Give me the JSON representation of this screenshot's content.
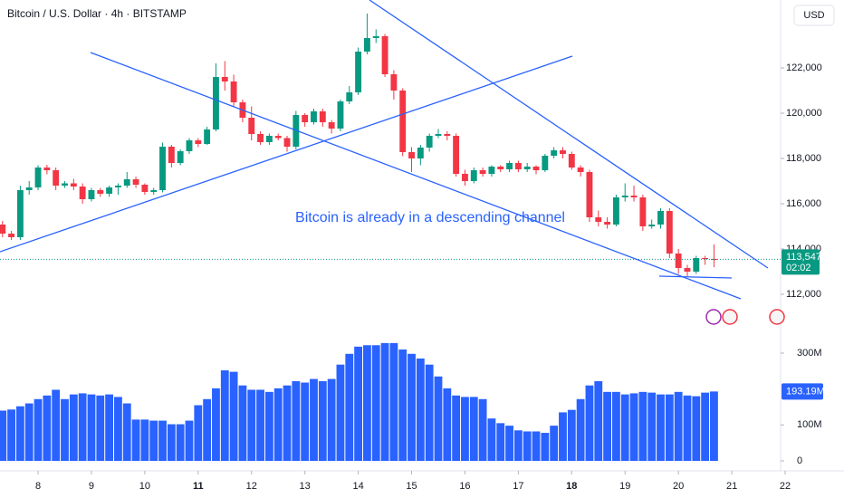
{
  "chart_data": {
    "type": "candlestick",
    "title": "Bitcoin / U.S. Dollar · 4h · BITSTAMP",
    "currency": "USD",
    "annotation": "Bitcoin is already in a descending channel",
    "up_color": "#089981",
    "down_color": "#f23645",
    "open": [
      115080,
      114680,
      114520,
      116600,
      116720,
      117600,
      117480,
      116800,
      116900,
      116760,
      116200,
      116600,
      116440,
      116720,
      116800,
      117080,
      116840,
      116520,
      116600,
      118520,
      117800,
      118320,
      118800,
      118640,
      119280,
      121600,
      121400,
      120480,
      119800,
      119080,
      118720,
      119000,
      118900,
      118520,
      119920,
      119600,
      120080,
      119600,
      119320,
      120520,
      120920,
      122720,
      123320,
      123400,
      121720,
      121000,
      118280,
      118000,
      118480,
      119000,
      119080,
      119000,
      117320,
      117000,
      117480,
      117320,
      117640,
      117520,
      117800,
      117520,
      117640,
      117480,
      118120,
      118360,
      118200,
      117600,
      117400,
      115400,
      115200,
      115080,
      116280,
      116360,
      116280,
      115000,
      115080,
      115680,
      113800,
      113160,
      113000,
      113600,
      113560
    ],
    "high": [
      115240,
      114800,
      116800,
      117000,
      117700,
      117720,
      117600,
      117000,
      117100,
      116900,
      116700,
      116700,
      116800,
      116900,
      117400,
      117200,
      116900,
      116700,
      118700,
      118600,
      118400,
      118900,
      118900,
      119400,
      122200,
      122300,
      121700,
      120600,
      120300,
      119200,
      119100,
      119100,
      119000,
      120100,
      120000,
      120200,
      120200,
      119700,
      120600,
      121200,
      122900,
      124400,
      123700,
      123500,
      121900,
      121100,
      118500,
      118600,
      119100,
      119300,
      119200,
      119100,
      117500,
      117600,
      117600,
      117700,
      117700,
      117900,
      117900,
      117800,
      117700,
      118200,
      118500,
      118500,
      118300,
      117700,
      117500,
      115700,
      115400,
      116400,
      116900,
      116800,
      116400,
      115300,
      115800,
      115800,
      114000,
      113300,
      113700,
      113700,
      114200
    ],
    "low": [
      114520,
      114400,
      114400,
      116400,
      116600,
      117300,
      116600,
      116700,
      116600,
      116000,
      116100,
      116300,
      116300,
      116400,
      116700,
      116700,
      116400,
      116400,
      116500,
      117600,
      117700,
      118200,
      118500,
      118600,
      119200,
      121000,
      120300,
      119600,
      118800,
      118600,
      118600,
      118800,
      118300,
      118400,
      119400,
      119500,
      119400,
      119100,
      119200,
      120400,
      120800,
      122600,
      123100,
      121600,
      120600,
      118100,
      117400,
      117700,
      118300,
      118900,
      118800,
      117200,
      116800,
      116900,
      117200,
      117200,
      117400,
      117400,
      117400,
      117400,
      117300,
      117400,
      118000,
      118000,
      117500,
      117200,
      115200,
      115000,
      114900,
      115000,
      116100,
      116100,
      114800,
      114900,
      114900,
      113600,
      112900,
      112800,
      112900,
      113300,
      113200
    ],
    "close": [
      114680,
      114520,
      116600,
      116720,
      117600,
      117480,
      116800,
      116900,
      116760,
      116200,
      116600,
      116440,
      116720,
      116800,
      117080,
      116840,
      116520,
      116600,
      118520,
      117800,
      118320,
      118800,
      118640,
      119280,
      121600,
      121400,
      120480,
      119800,
      119080,
      118720,
      119000,
      118900,
      118520,
      119920,
      119600,
      120080,
      119600,
      119320,
      120520,
      120920,
      122720,
      123320,
      123400,
      121720,
      121000,
      118280,
      118000,
      118480,
      119000,
      119080,
      119000,
      117320,
      117000,
      117480,
      117320,
      117640,
      117520,
      117800,
      117520,
      117640,
      117480,
      118120,
      118360,
      118200,
      117600,
      117400,
      115400,
      115200,
      115080,
      116280,
      116360,
      116280,
      115000,
      115080,
      115680,
      113800,
      113160,
      113000,
      113600,
      113560,
      113547
    ],
    "last_label": "113,547",
    "countdown": "02:02",
    "xlim": [
      -0.28,
      87.49
    ],
    "xticks": [
      {
        "value": 4,
        "label": "8"
      },
      {
        "value": 10,
        "label": "9"
      },
      {
        "value": 16,
        "label": "10"
      },
      {
        "value": 22,
        "label": "11",
        "bold": true
      },
      {
        "value": 28,
        "label": "12"
      },
      {
        "value": 34,
        "label": "13"
      },
      {
        "value": 40,
        "label": "14"
      },
      {
        "value": 46,
        "label": "15"
      },
      {
        "value": 52,
        "label": "16"
      },
      {
        "value": 58,
        "label": "17"
      },
      {
        "value": 64,
        "label": "18",
        "bold": true
      },
      {
        "value": 70,
        "label": "19"
      },
      {
        "value": 76,
        "label": "20"
      },
      {
        "value": 82,
        "label": "21"
      },
      {
        "value": 88,
        "label": "22"
      }
    ],
    "ylim": [
      110600,
      125000
    ],
    "yticks": [
      {
        "value": 112000,
        "label": "112,000"
      },
      {
        "value": 114000,
        "label": "114,000"
      },
      {
        "value": 116000,
        "label": "116,000"
      },
      {
        "value": 118000,
        "label": "118,000"
      },
      {
        "value": 120000,
        "label": "120,000"
      },
      {
        "value": 122000,
        "label": "122,000"
      }
    ],
    "volume": {
      "color": "#2962ff",
      "values": [
        140,
        143,
        152,
        160,
        172,
        182,
        198,
        172,
        185,
        188,
        185,
        182,
        185,
        178,
        160,
        115,
        115,
        112,
        112,
        102,
        102,
        112,
        155,
        172,
        202,
        252,
        248,
        210,
        198,
        198,
        192,
        202,
        210,
        222,
        218,
        228,
        222,
        228,
        268,
        298,
        318,
        322,
        322,
        328,
        328,
        310,
        298,
        285,
        268,
        235,
        202,
        182,
        178,
        178,
        172,
        118,
        105,
        98,
        85,
        82,
        82,
        78,
        98,
        135,
        142,
        172,
        210,
        222,
        192,
        192,
        185,
        188,
        192,
        190,
        185,
        185,
        192,
        182,
        180,
        190,
        193.19
      ],
      "last_label": "193.19M",
      "ylim": [
        0,
        363
      ],
      "yticks": [
        0,
        {
          "value": 100,
          "label": "100M"
        },
        {
          "value": 300,
          "label": "300M"
        }
      ]
    }
  }
}
